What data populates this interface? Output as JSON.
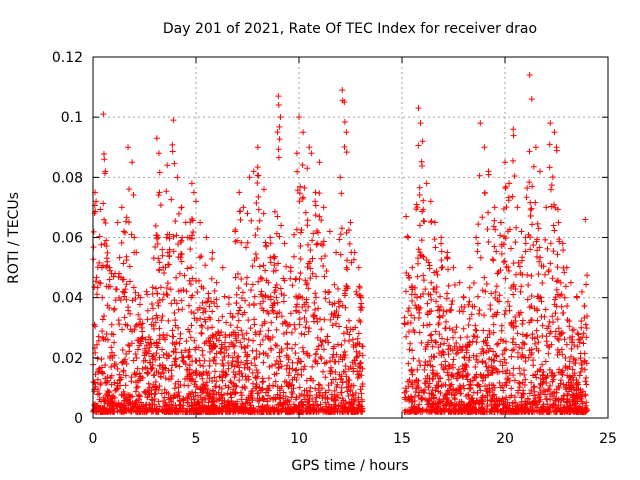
{
  "chart_data": {
    "type": "scatter",
    "title": "Day 201 of 2021, Rate Of TEC Index for receiver drao",
    "xlabel": "GPS time / hours",
    "ylabel": "ROTI / TECUs",
    "xlim": [
      0,
      25
    ],
    "ylim": [
      0,
      0.12
    ],
    "xticks": [
      0,
      5,
      10,
      15,
      20,
      25
    ],
    "xtick_labels": [
      "0",
      "5",
      "10",
      "15",
      "20",
      "25"
    ],
    "yticks": [
      0,
      0.02,
      0.04,
      0.06,
      0.08,
      0.1,
      0.12
    ],
    "ytick_labels": [
      "0",
      "0.02",
      "0.04",
      "0.06",
      "0.08",
      "0.1",
      "0.12"
    ],
    "grid": true,
    "marker": "+",
    "color": "#ff0000",
    "data_gap_hours": [
      13.1,
      15.1
    ],
    "series": [
      {
        "x": [
          0.1,
          0.15,
          0.3,
          0.45,
          0.5,
          0.55,
          0.6,
          0.8,
          0.9,
          1.0,
          1.2,
          1.4,
          1.5,
          1.7,
          1.9,
          2.0,
          2.1,
          2.3,
          2.6,
          2.9,
          3.1,
          3.2,
          3.4,
          3.6,
          3.8,
          3.9,
          4.1,
          4.3,
          4.5,
          4.6,
          4.8,
          4.9,
          5.0,
          5.2,
          5.5,
          5.8,
          6.0,
          6.3,
          6.6,
          6.9,
          7.1,
          7.3,
          7.5,
          7.6,
          7.8,
          8.0,
          8.3,
          8.6,
          8.9,
          9.0,
          9.1,
          9.3,
          9.6,
          9.9,
          10.0,
          10.2,
          10.4,
          10.5,
          10.6,
          10.8,
          11.0,
          11.2,
          11.5,
          11.8,
          12.0,
          12.1,
          12.2,
          12.3,
          12.5,
          12.7,
          12.9,
          13.0,
          15.2,
          15.3,
          15.5,
          15.8,
          15.9,
          16.0,
          16.2,
          16.4,
          16.6,
          16.9,
          17.2,
          17.5,
          17.8,
          18.0,
          18.3,
          18.6,
          18.8,
          19.0,
          19.2,
          19.5,
          19.8,
          20.0,
          20.2,
          20.4,
          20.6,
          20.8,
          21.0,
          21.2,
          21.3,
          21.5,
          21.7,
          22.0,
          22.2,
          22.4,
          22.5,
          22.6,
          22.8,
          23.0,
          23.2,
          23.5,
          23.7,
          23.9
        ],
        "y": [
          0.075,
          0.072,
          0.045,
          0.04,
          0.101,
          0.086,
          0.082,
          0.05,
          0.048,
          0.047,
          0.065,
          0.07,
          0.062,
          0.09,
          0.085,
          0.06,
          0.055,
          0.04,
          0.042,
          0.033,
          0.093,
          0.088,
          0.05,
          0.084,
          0.038,
          0.099,
          0.08,
          0.07,
          0.065,
          0.06,
          0.078,
          0.075,
          0.072,
          0.065,
          0.06,
          0.055,
          0.045,
          0.05,
          0.04,
          0.062,
          0.075,
          0.07,
          0.068,
          0.08,
          0.082,
          0.09,
          0.076,
          0.06,
          0.04,
          0.107,
          0.1,
          0.058,
          0.05,
          0.088,
          0.1,
          0.095,
          0.083,
          0.09,
          0.088,
          0.075,
          0.085,
          0.07,
          0.062,
          0.055,
          0.08,
          0.109,
          0.105,
          0.095,
          0.065,
          0.055,
          0.05,
          0.04,
          0.067,
          0.06,
          0.05,
          0.103,
          0.098,
          0.092,
          0.078,
          0.072,
          0.065,
          0.06,
          0.055,
          0.05,
          0.045,
          0.04,
          0.05,
          0.06,
          0.098,
          0.09,
          0.082,
          0.07,
          0.065,
          0.085,
          0.078,
          0.096,
          0.07,
          0.062,
          0.06,
          0.114,
          0.106,
          0.09,
          0.082,
          0.07,
          0.098,
          0.095,
          0.09,
          0.065,
          0.058,
          0.05,
          0.045,
          0.04,
          0.03,
          0.066
        ]
      }
    ]
  }
}
